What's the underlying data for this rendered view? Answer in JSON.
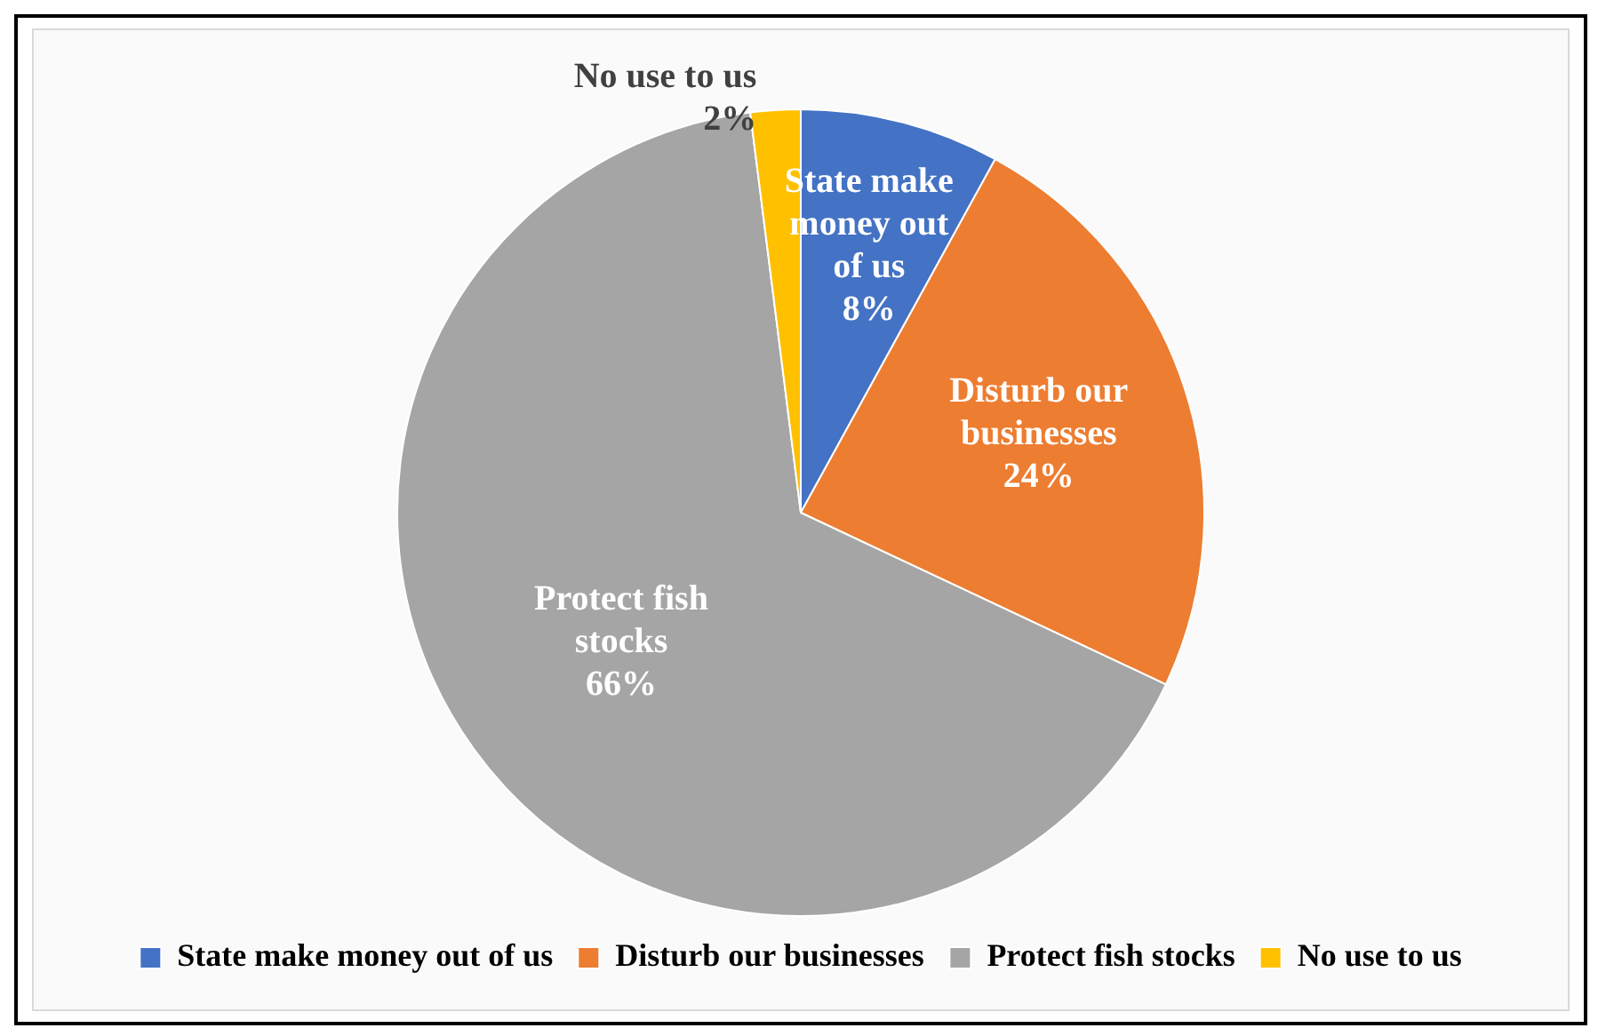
{
  "chart_data": {
    "type": "pie",
    "categories": [
      "State make money out of us",
      "Disturb our businesses",
      "Protect fish stocks",
      "No use to us"
    ],
    "values": [
      8,
      24,
      66,
      2
    ],
    "value_labels": [
      "8%",
      "24%",
      "66%",
      "2%"
    ],
    "colors": [
      "#4472c4",
      "#ed7d31",
      "#a5a5a5",
      "#ffc000"
    ],
    "legend": "bottom"
  }
}
